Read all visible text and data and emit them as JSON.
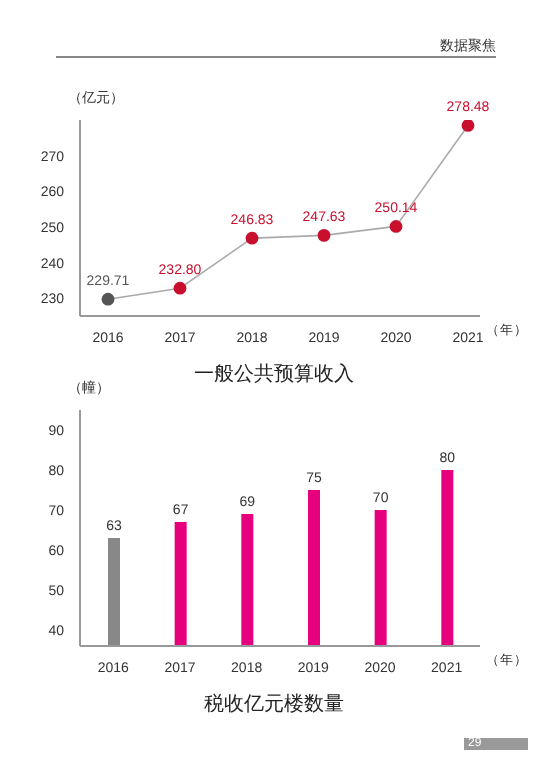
{
  "chart_data": [
    {
      "type": "line",
      "title": "一般公共预算收入",
      "ylabel": "（亿元）",
      "xlabel": "（年）",
      "annotations": [
        "数据聚焦"
      ],
      "categories": [
        "2016",
        "2017",
        "2018",
        "2019",
        "2020",
        "2021"
      ],
      "series": [
        {
          "color": "#aaaaaa",
          "colors": [
            "#555555",
            "#c8102e",
            "#c8102e",
            "#c8102e",
            "#c8102e",
            "#c8102e"
          ],
          "values": [
            229.71,
            232.8,
            246.83,
            247.63,
            250.14,
            278.48
          ]
        }
      ],
      "value_labels": [
        "229.71",
        "232.80",
        "246.83",
        "247.63",
        "250.14",
        "278.48"
      ],
      "ylim": [
        225,
        280
      ],
      "yticks": [
        230,
        240,
        250,
        260,
        270
      ],
      "marker": "circle",
      "grid": false,
      "legend": false
    },
    {
      "type": "bar",
      "title": "税收亿元楼数量",
      "ylabel": "（幢）",
      "xlabel": "（年）",
      "annotations": [
        "29"
      ],
      "categories": [
        "2016",
        "2017",
        "2018",
        "2019",
        "2020",
        "2021"
      ],
      "values": [
        63,
        67,
        69,
        75,
        70,
        80
      ],
      "colors": [
        "#888888",
        "#e6007e",
        "#e6007e",
        "#e6007e",
        "#e6007e",
        "#e6007e"
      ],
      "ylim": [
        36,
        95
      ],
      "yticks": [
        40,
        50,
        60,
        70,
        80,
        90
      ],
      "data_labels": true,
      "grid": false,
      "legend": false
    }
  ]
}
